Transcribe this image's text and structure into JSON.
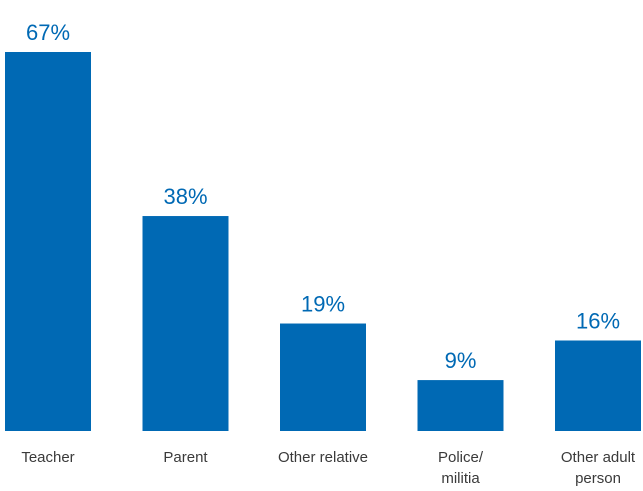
{
  "chart_data": {
    "type": "bar",
    "categories": [
      [
        "Teacher"
      ],
      [
        "Parent"
      ],
      [
        "Other relative"
      ],
      [
        "Police/",
        "militia"
      ],
      [
        "Other adult",
        "person"
      ]
    ],
    "values": [
      67,
      38,
      19,
      9,
      16
    ],
    "value_labels": [
      "67%",
      "38%",
      "19%",
      "9%",
      "16%"
    ],
    "unit": "%",
    "ylim": [
      0,
      67
    ],
    "grid": false,
    "legend": "none",
    "bar_color": "#0069b4"
  }
}
